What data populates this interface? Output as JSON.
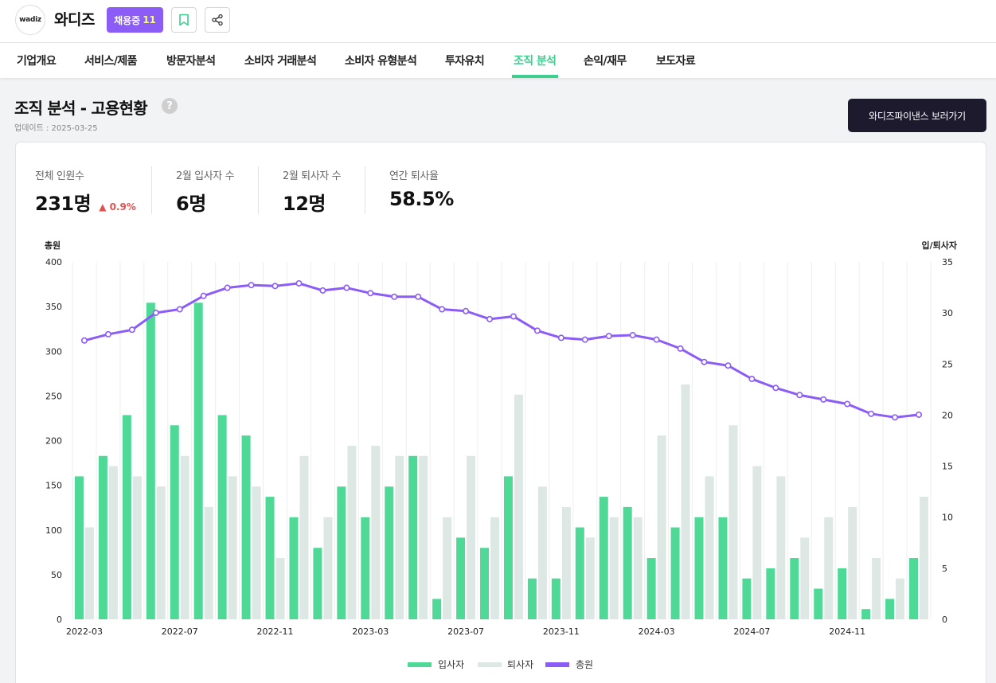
{
  "header": {
    "logo_text": "wadiz",
    "company_name": "와디즈",
    "hiring_label": "채용중",
    "hiring_count": "11",
    "bookmark_icon": "bookmark-icon",
    "share_icon": "share-icon"
  },
  "tabs": [
    {
      "label": "기업개요"
    },
    {
      "label": "서비스/제품"
    },
    {
      "label": "방문자분석"
    },
    {
      "label": "소비자 거래분석"
    },
    {
      "label": "소비자 유형분석"
    },
    {
      "label": "투자유치"
    },
    {
      "label": "조직 분석"
    },
    {
      "label": "손익/재무"
    },
    {
      "label": "보도자료"
    }
  ],
  "active_tab": "조직 분석",
  "section": {
    "title": "조직 분석 - 고용현황",
    "help": "?",
    "updated": "업데이트 : 2025-03-25",
    "cta_label": "와디즈파이낸스 보러가기"
  },
  "stats": [
    {
      "label": "전체 인원수",
      "value": "231명",
      "delta": "▲ 0.9%"
    },
    {
      "label": "2월 입사자 수",
      "value": "6명"
    },
    {
      "label": "2월 퇴사자 수",
      "value": "12명"
    },
    {
      "label": "연간 퇴사율",
      "value": "58.5%"
    }
  ],
  "colors": {
    "accent": "#3ccf8e",
    "hires": "#4ed997",
    "leavers": "#dde7e3",
    "total": "#8b5cf6",
    "hiring_badge": "#8b5cf6",
    "cta": "#1d1a2e",
    "delta_up": "#e05252"
  },
  "chart_data": {
    "type": "bar",
    "ylabel": "총원",
    "y2label": "입/퇴사자",
    "ylim": [
      0,
      400
    ],
    "y2lim": [
      0,
      35
    ],
    "yticks": [
      0,
      50,
      100,
      150,
      200,
      250,
      300,
      350,
      400
    ],
    "y2ticks": [
      0,
      5,
      10,
      15,
      20,
      25,
      30,
      35
    ],
    "x": [
      "2022-03",
      "2022-04",
      "2022-05",
      "2022-06",
      "2022-07",
      "2022-08",
      "2022-09",
      "2022-10",
      "2022-11",
      "2022-12",
      "2023-01",
      "2023-02",
      "2023-03",
      "2023-04",
      "2023-05",
      "2023-06",
      "2023-07",
      "2023-08",
      "2023-09",
      "2023-10",
      "2023-11",
      "2023-12",
      "2024-01",
      "2024-02",
      "2024-03",
      "2024-04",
      "2024-05",
      "2024-06",
      "2024-07",
      "2024-08",
      "2024-09",
      "2024-10",
      "2024-11",
      "2024-12",
      "2025-01",
      "2025-02"
    ],
    "xtick_labels": [
      "2022-03",
      "2022-07",
      "2022-11",
      "2023-03",
      "2023-07",
      "2023-11",
      "2024-03",
      "2024-07",
      "2024-11"
    ],
    "legend": [
      "입사자",
      "퇴사자",
      "총원"
    ],
    "series": [
      {
        "name": "입사자",
        "axis": "right",
        "kind": "bar",
        "values": [
          14,
          16,
          20,
          31,
          19,
          31,
          20,
          18,
          12,
          10,
          7,
          13,
          10,
          13,
          16,
          2,
          8,
          7,
          14,
          4,
          4,
          9,
          12,
          11,
          6,
          9,
          10,
          10,
          4,
          5,
          6,
          3,
          5,
          1,
          2,
          6
        ]
      },
      {
        "name": "퇴사자",
        "axis": "right",
        "kind": "bar",
        "values": [
          9,
          15,
          14,
          13,
          16,
          11,
          14,
          13,
          6,
          16,
          10,
          17,
          17,
          16,
          16,
          10,
          16,
          10,
          22,
          13,
          11,
          8,
          10,
          10,
          18,
          23,
          14,
          19,
          15,
          14,
          8,
          10,
          11,
          6,
          4,
          12
        ]
      },
      {
        "name": "총원",
        "axis": "left",
        "kind": "line",
        "values": [
          312,
          319,
          324,
          343,
          347,
          362,
          371,
          374,
          373,
          376,
          368,
          371,
          365,
          361,
          361,
          347,
          345,
          336,
          339,
          323,
          315,
          313,
          317,
          318,
          313,
          303,
          288,
          284,
          269,
          259,
          251,
          246,
          241,
          230,
          226,
          229
        ]
      }
    ]
  }
}
